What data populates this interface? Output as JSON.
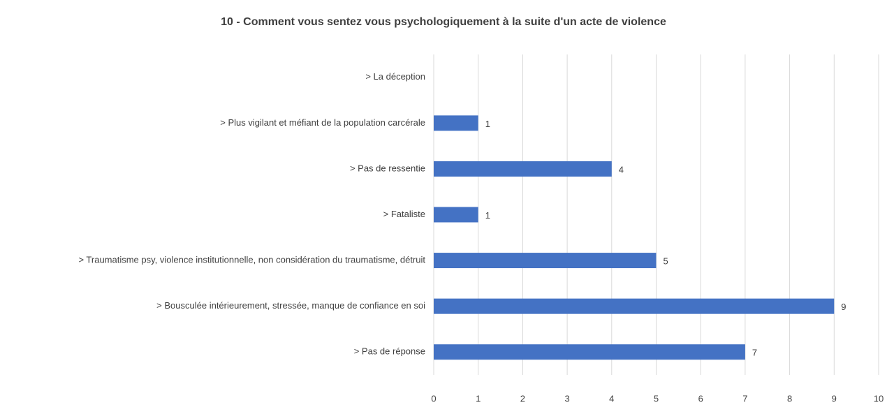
{
  "chart_data": {
    "type": "bar",
    "orientation": "horizontal",
    "title": "10 - Comment vous sentez vous psychologiquement à la suite d'un acte de violence",
    "categories": [
      "> La déception",
      "> Plus vigilant et méfiant de la population carcérale",
      "> Pas de ressentie",
      "> Fataliste",
      "> Traumatisme psy, violence institutionnelle, non considération du traumatisme, détruit",
      "> Bousculée intérieurement, stressée, manque de confiance en soi",
      "> Pas de réponse"
    ],
    "values": [
      null,
      1,
      4,
      1,
      5,
      9,
      7
    ],
    "color": "#4472c4",
    "xlim": [
      0,
      10
    ],
    "xticks": [
      0,
      1,
      2,
      3,
      4,
      5,
      6,
      7,
      8,
      9,
      10
    ],
    "grid": true
  }
}
